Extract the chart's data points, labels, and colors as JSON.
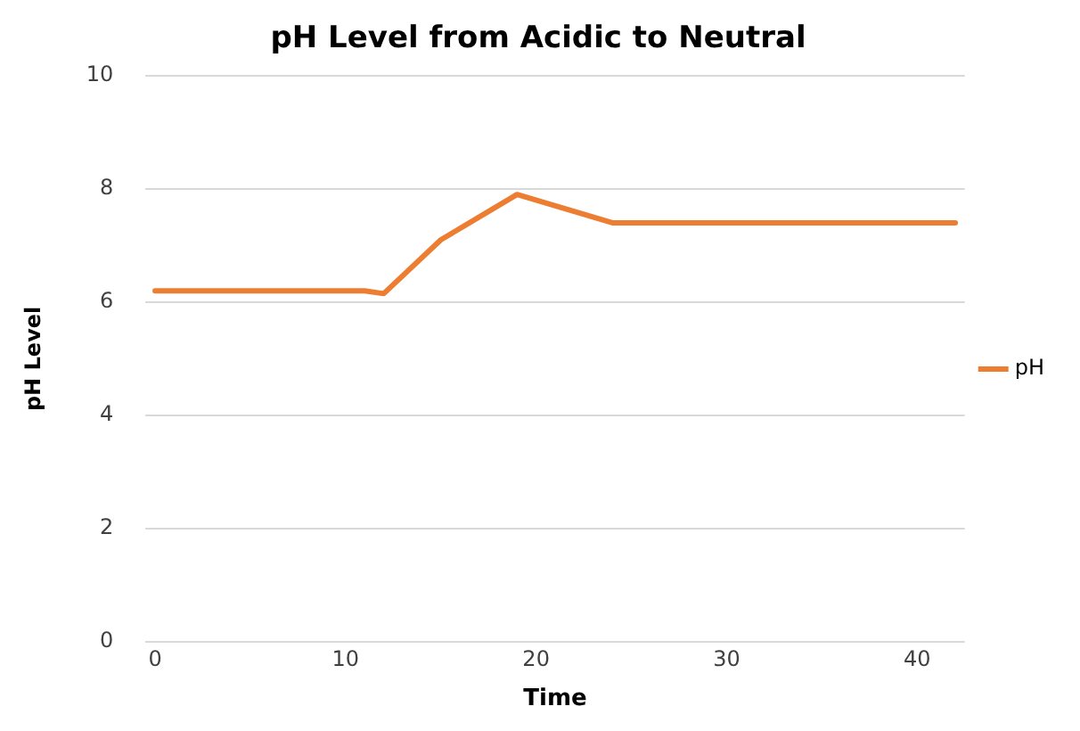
{
  "chart_data": {
    "type": "line",
    "title": "pH Level from Acidic to Neutral",
    "xlabel": "Time",
    "ylabel": "pH Level",
    "series": [
      {
        "name": "pH",
        "color": "#ed7d31",
        "x": [
          0,
          11,
          12,
          15,
          19,
          24,
          42
        ],
        "values": [
          6.2,
          6.2,
          6.15,
          7.1,
          7.9,
          7.4,
          7.4
        ]
      }
    ],
    "xlim": [
      -0.5,
      42.5
    ],
    "xticks": [
      0,
      10,
      20,
      30,
      40
    ],
    "ylim": [
      0,
      10
    ],
    "yticks": [
      0,
      2,
      4,
      6,
      8,
      10
    ],
    "grid": "y",
    "legend": "right",
    "marker": "none",
    "line_style": "solid"
  }
}
